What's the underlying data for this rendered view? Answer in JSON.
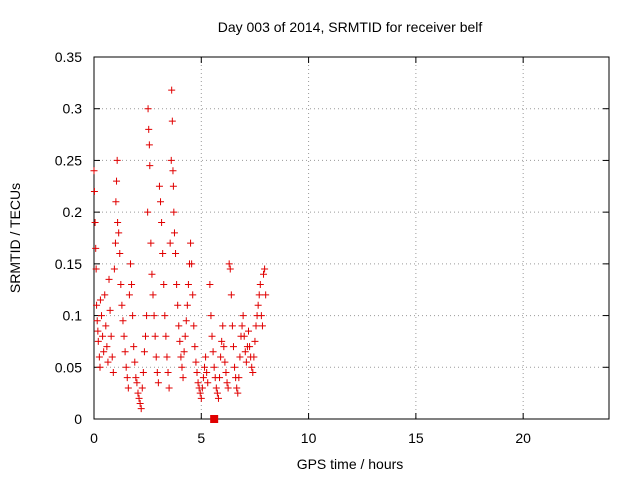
{
  "chart_data": {
    "type": "scatter",
    "title": "Day 003 of 2014, SRMTID for receiver belf",
    "xlabel": "GPS time / hours",
    "ylabel": "SRMTID / TECUs",
    "xlim": [
      0,
      24
    ],
    "ylim": [
      0,
      0.35
    ],
    "grid": true,
    "marker": "+",
    "marker_color": "#e00000",
    "x_ticks": [
      0,
      5,
      10,
      15,
      20
    ],
    "x_tick_labels": [
      "0",
      "5",
      "10",
      "15",
      "20"
    ],
    "y_ticks": [
      0,
      0.05,
      0.1,
      0.15,
      0.2,
      0.25,
      0.3,
      0.35
    ],
    "y_tick_labels": [
      "0",
      "0.05",
      "0.1",
      "0.15",
      "0.2",
      "0.25",
      "0.3",
      "0.35"
    ],
    "series": [
      {
        "name": "SRMTID",
        "points": [
          [
            0.0,
            0.24
          ],
          [
            0.02,
            0.22
          ],
          [
            0.05,
            0.19
          ],
          [
            0.08,
            0.165
          ],
          [
            0.1,
            0.145
          ],
          [
            0.12,
            0.11
          ],
          [
            0.15,
            0.095
          ],
          [
            0.18,
            0.085
          ],
          [
            0.2,
            0.075
          ],
          [
            0.25,
            0.06
          ],
          [
            0.28,
            0.05
          ],
          [
            0.3,
            0.115
          ],
          [
            0.35,
            0.1
          ],
          [
            0.4,
            0.08
          ],
          [
            0.45,
            0.065
          ],
          [
            0.5,
            0.12
          ],
          [
            0.55,
            0.09
          ],
          [
            0.6,
            0.07
          ],
          [
            0.65,
            0.055
          ],
          [
            0.7,
            0.135
          ],
          [
            0.75,
            0.105
          ],
          [
            0.8,
            0.08
          ],
          [
            0.85,
            0.06
          ],
          [
            0.9,
            0.045
          ],
          [
            0.95,
            0.145
          ],
          [
            1.0,
            0.17
          ],
          [
            1.02,
            0.21
          ],
          [
            1.05,
            0.23
          ],
          [
            1.08,
            0.25
          ],
          [
            1.1,
            0.19
          ],
          [
            1.15,
            0.18
          ],
          [
            1.2,
            0.16
          ],
          [
            1.25,
            0.13
          ],
          [
            1.3,
            0.11
          ],
          [
            1.35,
            0.095
          ],
          [
            1.4,
            0.08
          ],
          [
            1.45,
            0.065
          ],
          [
            1.5,
            0.05
          ],
          [
            1.55,
            0.04
          ],
          [
            1.6,
            0.03
          ],
          [
            1.65,
            0.12
          ],
          [
            1.7,
            0.15
          ],
          [
            1.75,
            0.13
          ],
          [
            1.8,
            0.1
          ],
          [
            1.85,
            0.07
          ],
          [
            1.9,
            0.055
          ],
          [
            1.95,
            0.04
          ],
          [
            2.0,
            0.035
          ],
          [
            2.05,
            0.025
          ],
          [
            2.1,
            0.02
          ],
          [
            2.15,
            0.015
          ],
          [
            2.2,
            0.01
          ],
          [
            2.25,
            0.03
          ],
          [
            2.3,
            0.045
          ],
          [
            2.35,
            0.065
          ],
          [
            2.4,
            0.08
          ],
          [
            2.45,
            0.1
          ],
          [
            2.5,
            0.2
          ],
          [
            2.52,
            0.3
          ],
          [
            2.55,
            0.28
          ],
          [
            2.58,
            0.265
          ],
          [
            2.6,
            0.245
          ],
          [
            2.65,
            0.17
          ],
          [
            2.7,
            0.14
          ],
          [
            2.75,
            0.12
          ],
          [
            2.8,
            0.1
          ],
          [
            2.85,
            0.08
          ],
          [
            2.9,
            0.06
          ],
          [
            2.95,
            0.045
          ],
          [
            3.0,
            0.035
          ],
          [
            3.05,
            0.225
          ],
          [
            3.1,
            0.21
          ],
          [
            3.15,
            0.19
          ],
          [
            3.2,
            0.16
          ],
          [
            3.25,
            0.13
          ],
          [
            3.3,
            0.1
          ],
          [
            3.35,
            0.08
          ],
          [
            3.4,
            0.06
          ],
          [
            3.45,
            0.045
          ],
          [
            3.5,
            0.03
          ],
          [
            3.55,
            0.17
          ],
          [
            3.6,
            0.25
          ],
          [
            3.62,
            0.318
          ],
          [
            3.65,
            0.288
          ],
          [
            3.68,
            0.24
          ],
          [
            3.7,
            0.225
          ],
          [
            3.72,
            0.2
          ],
          [
            3.75,
            0.18
          ],
          [
            3.8,
            0.16
          ],
          [
            3.85,
            0.13
          ],
          [
            3.9,
            0.11
          ],
          [
            3.95,
            0.09
          ],
          [
            4.0,
            0.075
          ],
          [
            4.05,
            0.06
          ],
          [
            4.1,
            0.05
          ],
          [
            4.15,
            0.04
          ],
          [
            4.2,
            0.065
          ],
          [
            4.25,
            0.08
          ],
          [
            4.3,
            0.095
          ],
          [
            4.35,
            0.11
          ],
          [
            4.4,
            0.13
          ],
          [
            4.45,
            0.15
          ],
          [
            4.5,
            0.17
          ],
          [
            4.55,
            0.15
          ],
          [
            4.6,
            0.12
          ],
          [
            4.65,
            0.09
          ],
          [
            4.7,
            0.07
          ],
          [
            4.75,
            0.055
          ],
          [
            4.8,
            0.045
          ],
          [
            4.85,
            0.035
          ],
          [
            4.9,
            0.03
          ],
          [
            4.95,
            0.025
          ],
          [
            5.0,
            0.02
          ],
          [
            5.05,
            0.03
          ],
          [
            5.1,
            0.04
          ],
          [
            5.15,
            0.05
          ],
          [
            5.2,
            0.06
          ],
          [
            5.25,
            0.045
          ],
          [
            5.3,
            0.035
          ],
          [
            5.4,
            0.13
          ],
          [
            5.45,
            0.1
          ],
          [
            5.5,
            0.08
          ],
          [
            5.55,
            0.065
          ],
          [
            5.6,
            0.05
          ],
          [
            5.65,
            0.04
          ],
          [
            5.7,
            0.03
          ],
          [
            5.75,
            0.025
          ],
          [
            5.8,
            0.02
          ],
          [
            5.85,
            0.04
          ],
          [
            5.9,
            0.06
          ],
          [
            5.95,
            0.075
          ],
          [
            6.0,
            0.09
          ],
          [
            6.05,
            0.07
          ],
          [
            6.1,
            0.055
          ],
          [
            6.15,
            0.045
          ],
          [
            6.2,
            0.035
          ],
          [
            6.25,
            0.03
          ],
          [
            6.3,
            0.15
          ],
          [
            6.35,
            0.145
          ],
          [
            6.4,
            0.12
          ],
          [
            6.45,
            0.09
          ],
          [
            6.5,
            0.07
          ],
          [
            6.55,
            0.05
          ],
          [
            6.6,
            0.04
          ],
          [
            6.65,
            0.03
          ],
          [
            6.7,
            0.025
          ],
          [
            6.75,
            0.04
          ],
          [
            6.8,
            0.06
          ],
          [
            6.85,
            0.08
          ],
          [
            6.9,
            0.09
          ],
          [
            6.95,
            0.1
          ],
          [
            7.0,
            0.08
          ],
          [
            7.05,
            0.065
          ],
          [
            7.1,
            0.055
          ],
          [
            7.15,
            0.07
          ],
          [
            7.2,
            0.085
          ],
          [
            7.25,
            0.07
          ],
          [
            7.3,
            0.06
          ],
          [
            7.35,
            0.05
          ],
          [
            7.4,
            0.045
          ],
          [
            7.45,
            0.06
          ],
          [
            7.5,
            0.075
          ],
          [
            7.55,
            0.09
          ],
          [
            7.6,
            0.1
          ],
          [
            7.65,
            0.11
          ],
          [
            7.7,
            0.12
          ],
          [
            7.75,
            0.13
          ],
          [
            7.8,
            0.1
          ],
          [
            7.85,
            0.09
          ],
          [
            7.9,
            0.14
          ],
          [
            7.95,
            0.145
          ],
          [
            8.0,
            0.12
          ]
        ]
      },
      {
        "name": "marker",
        "points": [
          [
            5.6,
            0.0
          ]
        ],
        "marker": "square"
      }
    ]
  }
}
